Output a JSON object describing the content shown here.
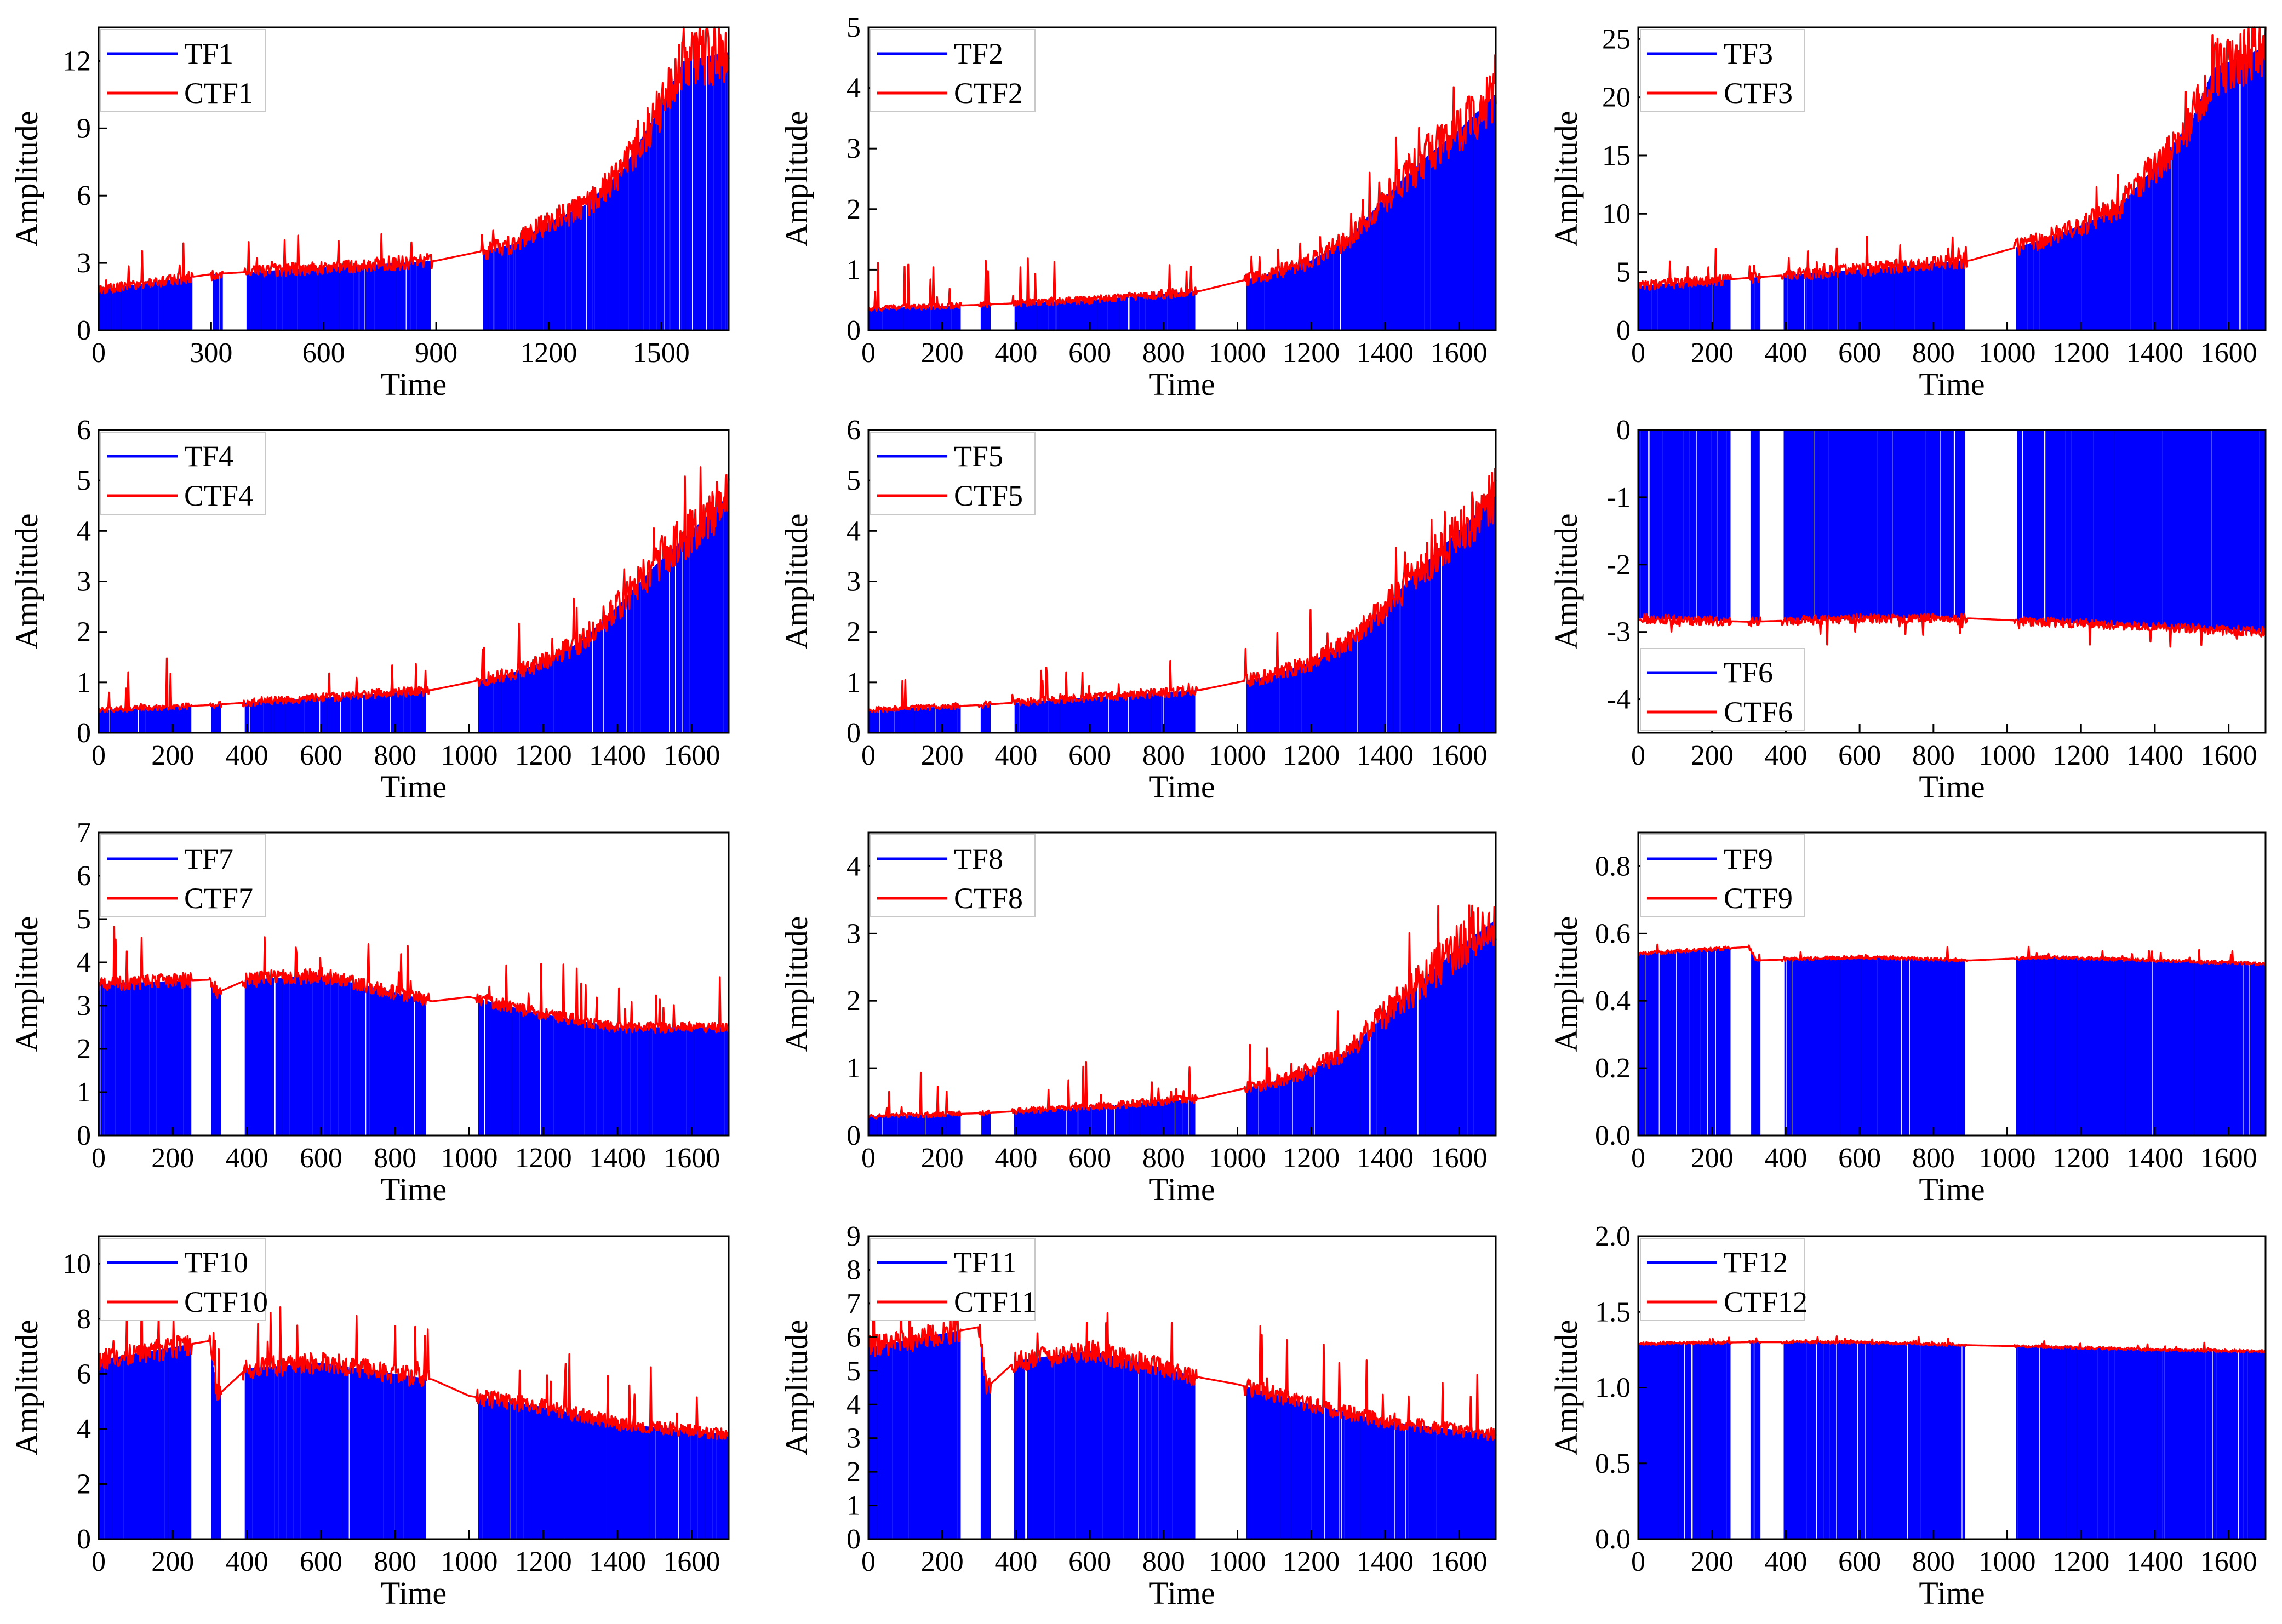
{
  "colors": {
    "tf": "#0000ff",
    "ctf": "#ff0000",
    "axis": "#000000",
    "legend_border": "#c8c8c8"
  },
  "chart_data": [
    {
      "type": "line",
      "xlabel": "Time",
      "ylabel": "Amplitude",
      "legend_position": "top-left",
      "series": [
        {
          "name": "TF1",
          "style": "bars"
        },
        {
          "name": "CTF1",
          "style": "line"
        }
      ],
      "xlim": [
        0,
        1680
      ],
      "xticks": [
        0,
        300,
        600,
        900,
        1200,
        1500
      ],
      "ylim": [
        0,
        13.5
      ],
      "yticks": [
        0,
        3,
        6,
        9,
        12
      ],
      "baseline": 0,
      "trend": [
        [
          0,
          1.8
        ],
        [
          300,
          2.5
        ],
        [
          600,
          2.8
        ],
        [
          900,
          3.1
        ],
        [
          1100,
          3.8
        ],
        [
          1200,
          4.8
        ],
        [
          1300,
          5.6
        ],
        [
          1400,
          7.2
        ],
        [
          1500,
          10.0
        ],
        [
          1560,
          12.0
        ],
        [
          1680,
          12.4
        ]
      ],
      "noise": 0.22,
      "spike_height": 1.5
    },
    {
      "type": "line",
      "xlabel": "Time",
      "ylabel": "Amplitude",
      "legend_position": "top-left",
      "series": [
        {
          "name": "TF2",
          "style": "bars"
        },
        {
          "name": "CTF2",
          "style": "line"
        }
      ],
      "xlim": [
        0,
        1700
      ],
      "xticks": [
        0,
        200,
        400,
        600,
        800,
        1000,
        1200,
        1400,
        1600
      ],
      "ylim": [
        0,
        5
      ],
      "yticks": [
        0,
        1,
        2,
        3,
        4,
        5
      ],
      "baseline": 0,
      "trend": [
        [
          0,
          0.36
        ],
        [
          300,
          0.42
        ],
        [
          600,
          0.5
        ],
        [
          900,
          0.65
        ],
        [
          1100,
          0.95
        ],
        [
          1200,
          1.15
        ],
        [
          1300,
          1.5
        ],
        [
          1400,
          2.2
        ],
        [
          1500,
          2.8
        ],
        [
          1600,
          3.3
        ],
        [
          1700,
          3.9
        ]
      ],
      "noise": 0.25,
      "spike_height": 0.85
    },
    {
      "type": "line",
      "xlabel": "Time",
      "ylabel": "Amplitude",
      "legend_position": "top-left",
      "series": [
        {
          "name": "TF3",
          "style": "bars"
        },
        {
          "name": "CTF3",
          "style": "line"
        }
      ],
      "xlim": [
        0,
        1700
      ],
      "xticks": [
        0,
        200,
        400,
        600,
        800,
        1000,
        1200,
        1400,
        1600
      ],
      "ylim": [
        0,
        26
      ],
      "yticks": [
        0,
        5,
        10,
        15,
        20,
        25
      ],
      "baseline": 0,
      "trend": [
        [
          0,
          3.8
        ],
        [
          300,
          4.5
        ],
        [
          600,
          5.2
        ],
        [
          900,
          6.0
        ],
        [
          1100,
          7.8
        ],
        [
          1200,
          9.0
        ],
        [
          1300,
          10.5
        ],
        [
          1400,
          14.0
        ],
        [
          1500,
          18.0
        ],
        [
          1560,
          22.5
        ],
        [
          1700,
          24.3
        ]
      ],
      "noise": 0.22,
      "spike_height": 2.5
    },
    {
      "type": "line",
      "xlabel": "Time",
      "ylabel": "Amplitude",
      "legend_position": "top-left",
      "series": [
        {
          "name": "TF4",
          "style": "bars"
        },
        {
          "name": "CTF4",
          "style": "line"
        }
      ],
      "xlim": [
        0,
        1700
      ],
      "xticks": [
        0,
        200,
        400,
        600,
        800,
        1000,
        1200,
        1400,
        1600
      ],
      "ylim": [
        0,
        6
      ],
      "yticks": [
        0,
        1,
        2,
        3,
        4,
        5,
        6
      ],
      "baseline": 0,
      "trend": [
        [
          0,
          0.45
        ],
        [
          300,
          0.55
        ],
        [
          600,
          0.7
        ],
        [
          900,
          0.85
        ],
        [
          1100,
          1.15
        ],
        [
          1200,
          1.4
        ],
        [
          1300,
          1.8
        ],
        [
          1400,
          2.5
        ],
        [
          1500,
          3.3
        ],
        [
          1600,
          4.0
        ],
        [
          1700,
          4.7
        ]
      ],
      "noise": 0.25,
      "spike_height": 1.0
    },
    {
      "type": "line",
      "xlabel": "Time",
      "ylabel": "Amplitude",
      "legend_position": "top-left",
      "series": [
        {
          "name": "TF5",
          "style": "bars"
        },
        {
          "name": "CTF5",
          "style": "line"
        }
      ],
      "xlim": [
        0,
        1700
      ],
      "xticks": [
        0,
        200,
        400,
        600,
        800,
        1000,
        1200,
        1400,
        1600
      ],
      "ylim": [
        0,
        6
      ],
      "yticks": [
        0,
        1,
        2,
        3,
        4,
        5,
        6
      ],
      "baseline": 0,
      "trend": [
        [
          0,
          0.45
        ],
        [
          300,
          0.55
        ],
        [
          600,
          0.7
        ],
        [
          900,
          0.85
        ],
        [
          1100,
          1.15
        ],
        [
          1200,
          1.4
        ],
        [
          1300,
          1.8
        ],
        [
          1400,
          2.5
        ],
        [
          1500,
          3.3
        ],
        [
          1600,
          4.0
        ],
        [
          1700,
          4.7
        ]
      ],
      "noise": 0.25,
      "spike_height": 1.0
    },
    {
      "type": "line",
      "xlabel": "Time",
      "ylabel": "Amplitude",
      "legend_position": "bottom-left",
      "series": [
        {
          "name": "TF6",
          "style": "bars"
        },
        {
          "name": "CTF6",
          "style": "line"
        }
      ],
      "xlim": [
        0,
        1700
      ],
      "xticks": [
        0,
        200,
        400,
        600,
        800,
        1000,
        1200,
        1400,
        1600
      ],
      "ylim": [
        -4.5,
        0
      ],
      "yticks": [
        -4,
        -3,
        -2,
        -1,
        0
      ],
      "baseline": 0,
      "trend": [
        [
          0,
          -2.8
        ],
        [
          300,
          -2.85
        ],
        [
          600,
          -2.8
        ],
        [
          900,
          -2.8
        ],
        [
          1100,
          -2.85
        ],
        [
          1300,
          -2.9
        ],
        [
          1500,
          -2.95
        ],
        [
          1700,
          -3.0
        ]
      ],
      "noise": 0.05,
      "spike_height": -0.35
    },
    {
      "type": "line",
      "xlabel": "Time",
      "ylabel": "Amplitude",
      "legend_position": "top-left",
      "series": [
        {
          "name": "TF7",
          "style": "bars"
        },
        {
          "name": "CTF7",
          "style": "line"
        }
      ],
      "xlim": [
        0,
        1700
      ],
      "xticks": [
        0,
        200,
        400,
        600,
        800,
        1000,
        1200,
        1400,
        1600
      ],
      "ylim": [
        0,
        7
      ],
      "yticks": [
        0,
        1,
        2,
        3,
        4,
        5,
        6,
        7
      ],
      "baseline": 0,
      "trend": [
        [
          0,
          3.5
        ],
        [
          300,
          3.6
        ],
        [
          320,
          3.3
        ],
        [
          400,
          3.6
        ],
        [
          600,
          3.7
        ],
        [
          900,
          3.1
        ],
        [
          1000,
          3.2
        ],
        [
          1200,
          2.8
        ],
        [
          1400,
          2.5
        ],
        [
          1700,
          2.5
        ]
      ],
      "noise": 0.1,
      "spike_height": 1.2
    },
    {
      "type": "line",
      "xlabel": "Time",
      "ylabel": "Amplitude",
      "legend_position": "top-left",
      "series": [
        {
          "name": "TF8",
          "style": "bars"
        },
        {
          "name": "CTF8",
          "style": "line"
        }
      ],
      "xlim": [
        0,
        1700
      ],
      "xticks": [
        0,
        200,
        400,
        600,
        800,
        1000,
        1200,
        1400,
        1600
      ],
      "ylim": [
        0,
        4.5
      ],
      "yticks": [
        0,
        1,
        2,
        3,
        4
      ],
      "baseline": 0,
      "trend": [
        [
          0,
          0.28
        ],
        [
          300,
          0.33
        ],
        [
          600,
          0.42
        ],
        [
          900,
          0.55
        ],
        [
          1100,
          0.8
        ],
        [
          1200,
          0.98
        ],
        [
          1300,
          1.25
        ],
        [
          1400,
          1.8
        ],
        [
          1500,
          2.3
        ],
        [
          1600,
          2.8
        ],
        [
          1700,
          3.2
        ]
      ],
      "noise": 0.25,
      "spike_height": 0.7
    },
    {
      "type": "line",
      "xlabel": "Time",
      "ylabel": "Amplitude",
      "legend_position": "top-left",
      "series": [
        {
          "name": "TF9",
          "style": "bars"
        },
        {
          "name": "CTF9",
          "style": "line"
        }
      ],
      "xlim": [
        0,
        1700
      ],
      "xticks": [
        0,
        200,
        400,
        600,
        800,
        1000,
        1200,
        1400,
        1600
      ],
      "ylim": [
        0,
        0.9
      ],
      "yticks": [
        0.0,
        0.2,
        0.4,
        0.6,
        0.8
      ],
      "ytick_decimals": 1,
      "baseline": 0,
      "trend": [
        [
          0,
          0.54
        ],
        [
          300,
          0.56
        ],
        [
          320,
          0.52
        ],
        [
          600,
          0.53
        ],
        [
          900,
          0.52
        ],
        [
          1100,
          0.53
        ],
        [
          1400,
          0.52
        ],
        [
          1700,
          0.51
        ]
      ],
      "noise": 0.02,
      "spike_height": 0.04
    },
    {
      "type": "line",
      "xlabel": "Time",
      "ylabel": "Amplitude",
      "legend_position": "top-left",
      "series": [
        {
          "name": "TF10",
          "style": "bars"
        },
        {
          "name": "CTF10",
          "style": "line"
        }
      ],
      "xlim": [
        0,
        1700
      ],
      "xticks": [
        0,
        200,
        400,
        600,
        800,
        1000,
        1200,
        1400,
        1600
      ],
      "ylim": [
        0,
        11
      ],
      "yticks": [
        0,
        2,
        4,
        6,
        8,
        10
      ],
      "baseline": 0,
      "trend": [
        [
          0,
          6.5
        ],
        [
          300,
          7.2
        ],
        [
          320,
          5.2
        ],
        [
          400,
          6.2
        ],
        [
          600,
          6.4
        ],
        [
          900,
          5.8
        ],
        [
          1000,
          5.2
        ],
        [
          1200,
          4.8
        ],
        [
          1400,
          4.2
        ],
        [
          1700,
          3.8
        ]
      ],
      "noise": 0.12,
      "spike_height": 2.0
    },
    {
      "type": "line",
      "xlabel": "Time",
      "ylabel": "Amplitude",
      "legend_position": "top-left",
      "series": [
        {
          "name": "TF11",
          "style": "bars"
        },
        {
          "name": "CTF11",
          "style": "line"
        }
      ],
      "xlim": [
        0,
        1700
      ],
      "xticks": [
        0,
        200,
        400,
        600,
        800,
        1000,
        1200,
        1400,
        1600
      ],
      "ylim": [
        0,
        9
      ],
      "yticks": [
        0,
        1,
        2,
        3,
        4,
        5,
        6,
        7,
        8,
        9
      ],
      "baseline": 0,
      "trend": [
        [
          0,
          5.7
        ],
        [
          300,
          6.3
        ],
        [
          320,
          4.5
        ],
        [
          400,
          5.3
        ],
        [
          600,
          5.6
        ],
        [
          900,
          4.8
        ],
        [
          1000,
          4.6
        ],
        [
          1200,
          4.0
        ],
        [
          1400,
          3.5
        ],
        [
          1700,
          3.1
        ]
      ],
      "noise": 0.12,
      "spike_height": 1.8
    },
    {
      "type": "line",
      "xlabel": "Time",
      "ylabel": "Amplitude",
      "legend_position": "top-left",
      "series": [
        {
          "name": "TF12",
          "style": "bars"
        },
        {
          "name": "CTF12",
          "style": "line"
        }
      ],
      "xlim": [
        0,
        1700
      ],
      "xticks": [
        0,
        200,
        400,
        600,
        800,
        1000,
        1200,
        1400,
        1600
      ],
      "ylim": [
        0,
        2.0
      ],
      "yticks": [
        0.0,
        0.5,
        1.0,
        1.5,
        2.0
      ],
      "ytick_decimals": 1,
      "baseline": 0,
      "trend": [
        [
          0,
          1.29
        ],
        [
          300,
          1.3
        ],
        [
          600,
          1.3
        ],
        [
          900,
          1.28
        ],
        [
          1100,
          1.27
        ],
        [
          1400,
          1.25
        ],
        [
          1700,
          1.24
        ]
      ],
      "noise": 0.015,
      "spike_height": 0.05
    }
  ]
}
